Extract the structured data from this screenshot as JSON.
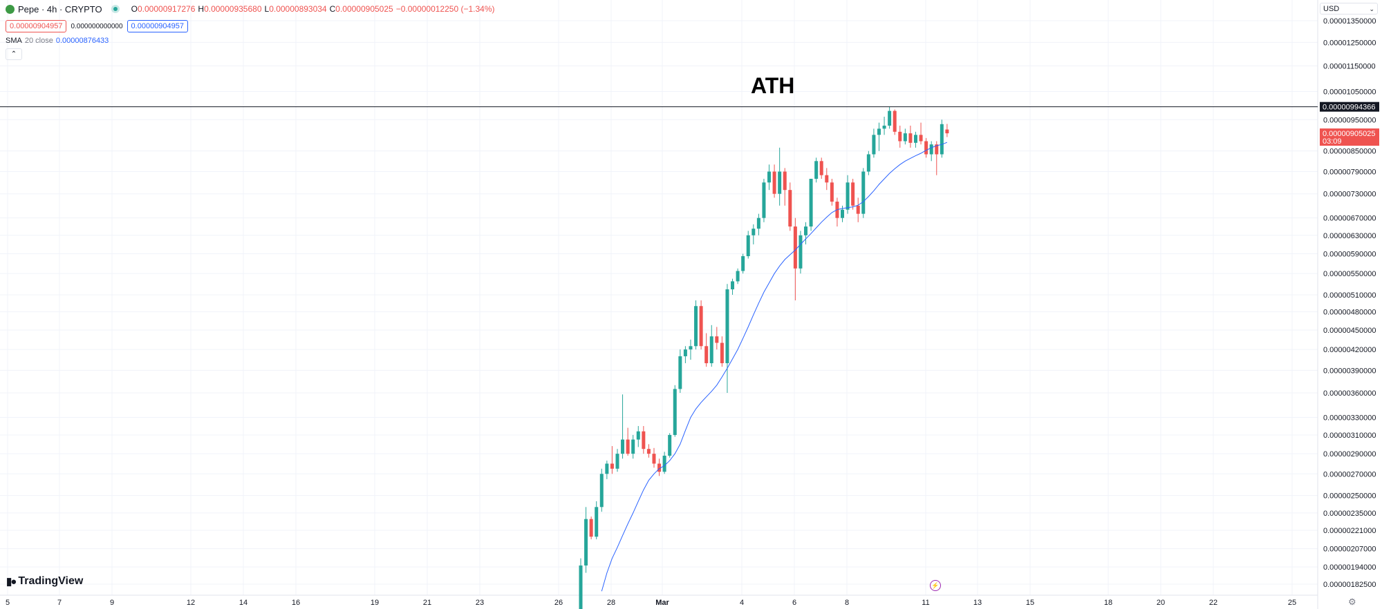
{
  "symbol": {
    "title": "Pepe · 4h · CRYPTO",
    "ohlc": {
      "o_key": "O",
      "o": "0.00000917276",
      "h_key": "H",
      "h": "0.00000935680",
      "l_key": "L",
      "l": "0.00000893034",
      "c_key": "C",
      "c": "0.00000905025",
      "change": "−0.00000012250 (−1.34%)"
    },
    "sell_price": "0.00000904957",
    "spread": "0.000000000000",
    "buy_price": "0.00000904957"
  },
  "indicator": {
    "name": "SMA",
    "params": "20 close",
    "value": "0.00000876433"
  },
  "currency": "USD",
  "annotation": "ATH",
  "brand": "TradingView",
  "colors": {
    "up": "#26a69a",
    "down": "#ef5350",
    "sma": "#2962ff",
    "line": "#131722"
  },
  "icons": {
    "collapse": "chevron-up-icon",
    "bolt": "lightning-icon",
    "gear": "settings-icon",
    "caret": "chevron-down-icon"
  },
  "chart_data": {
    "type": "candlestick",
    "timeframe": "4h",
    "y_scale": "log",
    "ylim": [
      1.75e-06,
      1.38e-05
    ],
    "y_ticks": [
      "0.00001350000",
      "0.00001250000",
      "0.00001150000",
      "0.00001050000",
      "0.00000950000",
      "0.00000850000",
      "0.00000790000",
      "0.00000730000",
      "0.00000670000",
      "0.00000630000",
      "0.00000590000",
      "0.00000550000",
      "0.00000510000",
      "0.00000480000",
      "0.00000450000",
      "0.00000420000",
      "0.00000390000",
      "0.00000360000",
      "0.00000330000",
      "0.00000310000",
      "0.00000290000",
      "0.00000270000",
      "0.00000250000",
      "0.00000235000",
      "0.00000221000",
      "0.00000207000",
      "0.00000194000",
      "0.00000182500"
    ],
    "x_ticks": [
      "5",
      "7",
      "9",
      "12",
      "14",
      "16",
      "19",
      "21",
      "23",
      "26",
      "28",
      "Mar",
      "4",
      "6",
      "8",
      "11",
      "13",
      "15",
      "18",
      "20",
      "22",
      "25"
    ],
    "ath_line": {
      "label": "0.00000994366",
      "value": 9.94366e-06
    },
    "last_price": {
      "label": "0.00000905025",
      "countdown": "03:09",
      "value": 9.05025e-06
    },
    "candles": [
      [
        1.65e-06,
        2e-06,
        1.6e-06,
        1.95e-06
      ],
      [
        1.95e-06,
        2.4e-06,
        1.9e-06,
        2.3e-06
      ],
      [
        2.3e-06,
        2.32e-06,
        2.14e-06,
        2.16e-06
      ],
      [
        2.16e-06,
        2.45e-06,
        2.14e-06,
        2.4e-06
      ],
      [
        2.4e-06,
        2.75e-06,
        2.36e-06,
        2.7e-06
      ],
      [
        2.7e-06,
        2.83e-06,
        2.65e-06,
        2.8e-06
      ],
      [
        2.8e-06,
        2.98e-06,
        2.7e-06,
        2.75e-06
      ],
      [
        2.75e-06,
        2.95e-06,
        2.72e-06,
        2.9e-06
      ],
      [
        2.9e-06,
        3.58e-06,
        2.85e-06,
        3.05e-06
      ],
      [
        3.05e-06,
        3.18e-06,
        2.88e-06,
        2.9e-06
      ],
      [
        2.9e-06,
        3.1e-06,
        2.85e-06,
        3.05e-06
      ],
      [
        3.05e-06,
        3.2e-06,
        2.97e-06,
        3.14e-06
      ],
      [
        3.14e-06,
        3.2e-06,
        2.9e-06,
        2.95e-06
      ],
      [
        2.95e-06,
        3e-06,
        2.86e-06,
        2.9e-06
      ],
      [
        2.9e-06,
        2.96e-06,
        2.76e-06,
        2.8e-06
      ],
      [
        2.8e-06,
        2.85e-06,
        2.68e-06,
        2.72e-06
      ],
      [
        2.72e-06,
        2.92e-06,
        2.7e-06,
        2.88e-06
      ],
      [
        2.88e-06,
        3.12e-06,
        2.86e-06,
        3.1e-06
      ],
      [
        3.1e-06,
        3.7e-06,
        3.08e-06,
        3.65e-06
      ],
      [
        3.65e-06,
        4.2e-06,
        3.6e-06,
        4.1e-06
      ],
      [
        4.1e-06,
        4.25e-06,
        4e-06,
        4.2e-06
      ],
      [
        4.2e-06,
        4.35e-06,
        4.05e-06,
        4.25e-06
      ],
      [
        4.25e-06,
        5e-06,
        4.2e-06,
        4.9e-06
      ],
      [
        4.9e-06,
        5e-06,
        4.2e-06,
        4.25e-06
      ],
      [
        4.25e-06,
        4.45e-06,
        3.95e-06,
        4e-06
      ],
      [
        4e-06,
        4.58e-06,
        3.95e-06,
        4.4e-06
      ],
      [
        4.4e-06,
        4.55e-06,
        4.2e-06,
        4.3e-06
      ],
      [
        4.3e-06,
        4.4e-06,
        3.95e-06,
        4e-06
      ],
      [
        4e-06,
        5.3e-06,
        3.6e-06,
        5.2e-06
      ],
      [
        5.2e-06,
        5.4e-06,
        5.1e-06,
        5.35e-06
      ],
      [
        5.35e-06,
        5.6e-06,
        5.3e-06,
        5.55e-06
      ],
      [
        5.55e-06,
        5.9e-06,
        5.5e-06,
        5.85e-06
      ],
      [
        5.85e-06,
        6.4e-06,
        5.8e-06,
        6.3e-06
      ],
      [
        6.3e-06,
        6.55e-06,
        6.1e-06,
        6.45e-06
      ],
      [
        6.45e-06,
        6.8e-06,
        6.3e-06,
        6.7e-06
      ],
      [
        6.7e-06,
        7.7e-06,
        6.6e-06,
        7.6e-06
      ],
      [
        7.6e-06,
        8.1e-06,
        7.4e-06,
        7.9e-06
      ],
      [
        7.9e-06,
        8.1e-06,
        7.2e-06,
        7.3e-06
      ],
      [
        7.3e-06,
        8.6e-06,
        7e-06,
        7.9e-06
      ],
      [
        7.9e-06,
        8e-06,
        7e-06,
        7.4e-06
      ],
      [
        7.4e-06,
        7.6e-06,
        6.4e-06,
        6.5e-06
      ],
      [
        6.5e-06,
        6.7e-06,
        5e-06,
        5.6e-06
      ],
      [
        5.6e-06,
        6.4e-06,
        5.5e-06,
        6.3e-06
      ],
      [
        6.3e-06,
        6.6e-06,
        6.1e-06,
        6.5e-06
      ],
      [
        6.5e-06,
        7.7e-06,
        6.4e-06,
        7.7e-06
      ],
      [
        7.7e-06,
        8.3e-06,
        7.6e-06,
        8.2e-06
      ],
      [
        8.2e-06,
        8.3e-06,
        7.7e-06,
        7.8e-06
      ],
      [
        7.8e-06,
        8e-06,
        7.4e-06,
        7.6e-06
      ],
      [
        7.6e-06,
        7.7e-06,
        7e-06,
        7.1e-06
      ],
      [
        7.1e-06,
        7.2e-06,
        6.5e-06,
        6.7e-06
      ],
      [
        6.7e-06,
        7e-06,
        6.6e-06,
        6.9e-06
      ],
      [
        6.9e-06,
        7.8e-06,
        6.8e-06,
        7.6e-06
      ],
      [
        7.6e-06,
        7.7e-06,
        6.9e-06,
        7e-06
      ],
      [
        7e-06,
        7.2e-06,
        6.6e-06,
        6.8e-06
      ],
      [
        6.8e-06,
        8e-06,
        6.7e-06,
        7.9e-06
      ],
      [
        7.9e-06,
        8.5e-06,
        7.8e-06,
        8.4e-06
      ],
      [
        8.4e-06,
        9.2e-06,
        8.3e-06,
        9e-06
      ],
      [
        9e-06,
        9.4e-06,
        8.5e-06,
        9.2e-06
      ],
      [
        9.2e-06,
        9.6e-06,
        9e-06,
        9.3e-06
      ],
      [
        9.3e-06,
        9.95e-06,
        9.2e-06,
        9.8e-06
      ],
      [
        9.8e-06,
        9.85e-06,
        9e-06,
        9.1e-06
      ],
      [
        9.1e-06,
        9.3e-06,
        8.6e-06,
        8.8e-06
      ],
      [
        8.8e-06,
        9.2e-06,
        8.7e-06,
        9.05e-06
      ],
      [
        9.05e-06,
        9.3e-06,
        8.6e-06,
        8.75e-06
      ],
      [
        8.75e-06,
        9.1e-06,
        8.6e-06,
        9e-06
      ],
      [
        9e-06,
        9.4e-06,
        8.7e-06,
        8.8e-06
      ],
      [
        8.8e-06,
        8.9e-06,
        8.3e-06,
        8.4e-06
      ],
      [
        8.4e-06,
        8.8e-06,
        8.2e-06,
        8.7e-06
      ],
      [
        8.7e-06,
        8.8e-06,
        7.8e-06,
        8.4e-06
      ],
      [
        8.4e-06,
        9.5e-06,
        8.3e-06,
        9.35e-06
      ],
      [
        9.17276e-06,
        9.3568e-06,
        8.93034e-06,
        9.05025e-06
      ]
    ],
    "sma20": [
      1.78e-06,
      1.9e-06,
      2e-06,
      2.08e-06,
      2.17e-06,
      2.26e-06,
      2.35e-06,
      2.45e-06,
      2.55e-06,
      2.64e-06,
      2.7e-06,
      2.75e-06,
      2.78e-06,
      2.83e-06,
      2.9e-06,
      3e-06,
      3.15e-06,
      3.3e-06,
      3.4e-06,
      3.48e-06,
      3.55e-06,
      3.62e-06,
      3.7e-06,
      3.81e-06,
      3.93e-06,
      4.06e-06,
      4.2e-06,
      4.37e-06,
      4.55e-06,
      4.75e-06,
      4.95e-06,
      5.15e-06,
      5.32e-06,
      5.5e-06,
      5.65e-06,
      5.78e-06,
      5.88e-06,
      5.98e-06,
      6.1e-06,
      6.22e-06,
      6.34e-06,
      6.47e-06,
      6.6e-06,
      6.72e-06,
      6.83e-06,
      6.9e-06,
      6.93e-06,
      6.95e-06,
      6.97e-06,
      7.01e-06,
      7.1e-06,
      7.23e-06,
      7.38e-06,
      7.55e-06,
      7.7e-06,
      7.85e-06,
      7.98e-06,
      8.1e-06,
      8.2e-06,
      8.28e-06,
      8.36e-06,
      8.43e-06,
      8.52e-06,
      8.6e-06,
      8.66e-06,
      8.7e-06,
      8.76433e-06
    ]
  }
}
